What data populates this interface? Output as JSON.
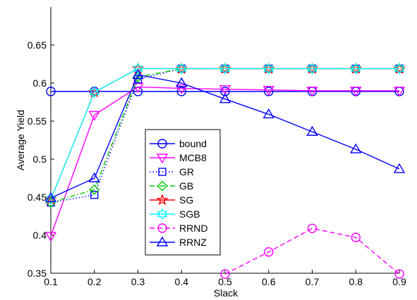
{
  "chart_data": {
    "type": "line",
    "xlabel": "Slack",
    "ylabel": "Average Yield",
    "xlim": [
      0.1,
      0.9
    ],
    "ylim": [
      0.35,
      0.7
    ],
    "x_ticks": [
      "0.1",
      "0.2",
      "0.3",
      "0.4",
      "0.5",
      "0.6",
      "0.7",
      "0.8",
      "0.9"
    ],
    "y_ticks": [
      "0.35",
      "0.4",
      "0.45",
      "0.5",
      "0.55",
      "0.6",
      "0.65"
    ],
    "grid": false,
    "legend_position": "center",
    "series": [
      {
        "name": "bound",
        "color": "#0000ff",
        "marker": "circle",
        "line": "solid",
        "x": [
          0.1,
          0.2,
          0.3,
          0.4,
          0.5,
          0.6,
          0.7,
          0.8,
          0.9
        ],
        "y": [
          0.589,
          0.589,
          0.589,
          0.589,
          0.589,
          0.589,
          0.589,
          0.589,
          0.589
        ]
      },
      {
        "name": "MCB8",
        "color": "#ff00ff",
        "marker": "triangle-down",
        "line": "solid",
        "x": [
          0.1,
          0.2,
          0.3,
          0.4,
          0.5,
          0.6,
          0.7,
          0.8,
          0.9
        ],
        "y": [
          0.399,
          0.558,
          0.595,
          0.593,
          0.592,
          0.591,
          0.59,
          0.59,
          0.59
        ]
      },
      {
        "name": "GR",
        "color": "#0000ff",
        "marker": "square",
        "line": "dotted",
        "x": [
          0.1,
          0.2,
          0.3,
          0.4,
          0.5,
          0.6,
          0.7,
          0.8,
          0.9
        ],
        "y": [
          0.443,
          0.453,
          0.605,
          0.619,
          0.619,
          0.619,
          0.619,
          0.619,
          0.619
        ]
      },
      {
        "name": "GB",
        "color": "#00cc00",
        "marker": "diamond",
        "line": "dashdot",
        "x": [
          0.1,
          0.2,
          0.3,
          0.4,
          0.5,
          0.6,
          0.7,
          0.8,
          0.9
        ],
        "y": [
          0.443,
          0.46,
          0.608,
          0.619,
          0.619,
          0.619,
          0.619,
          0.619,
          0.619
        ]
      },
      {
        "name": "SG",
        "color": "#ff0000",
        "marker": "star",
        "line": "solid",
        "x": [
          0.1,
          0.2,
          0.3,
          0.4,
          0.5,
          0.6,
          0.7,
          0.8,
          0.9
        ],
        "y": [
          0.447,
          0.588,
          0.619,
          0.619,
          0.619,
          0.619,
          0.619,
          0.619,
          0.619
        ]
      },
      {
        "name": "SGB",
        "color": "#00ffff",
        "marker": "hexagram",
        "line": "solid",
        "x": [
          0.1,
          0.2,
          0.3,
          0.4,
          0.5,
          0.6,
          0.7,
          0.8,
          0.9
        ],
        "y": [
          0.447,
          0.588,
          0.619,
          0.619,
          0.619,
          0.619,
          0.619,
          0.619,
          0.619
        ]
      },
      {
        "name": "RRND",
        "color": "#ff00ff",
        "marker": "circle",
        "line": "dashed",
        "x": [
          0.5,
          0.6,
          0.7,
          0.8,
          0.9
        ],
        "y": [
          0.349,
          0.378,
          0.409,
          0.397,
          0.349
        ]
      },
      {
        "name": "RRNZ",
        "color": "#0000ff",
        "marker": "triangle-up",
        "line": "solid",
        "x": [
          0.1,
          0.2,
          0.3,
          0.4,
          0.5,
          0.6,
          0.7,
          0.8,
          0.9
        ],
        "y": [
          0.449,
          0.475,
          0.611,
          0.6,
          0.579,
          0.559,
          0.536,
          0.513,
          0.487
        ]
      }
    ]
  }
}
